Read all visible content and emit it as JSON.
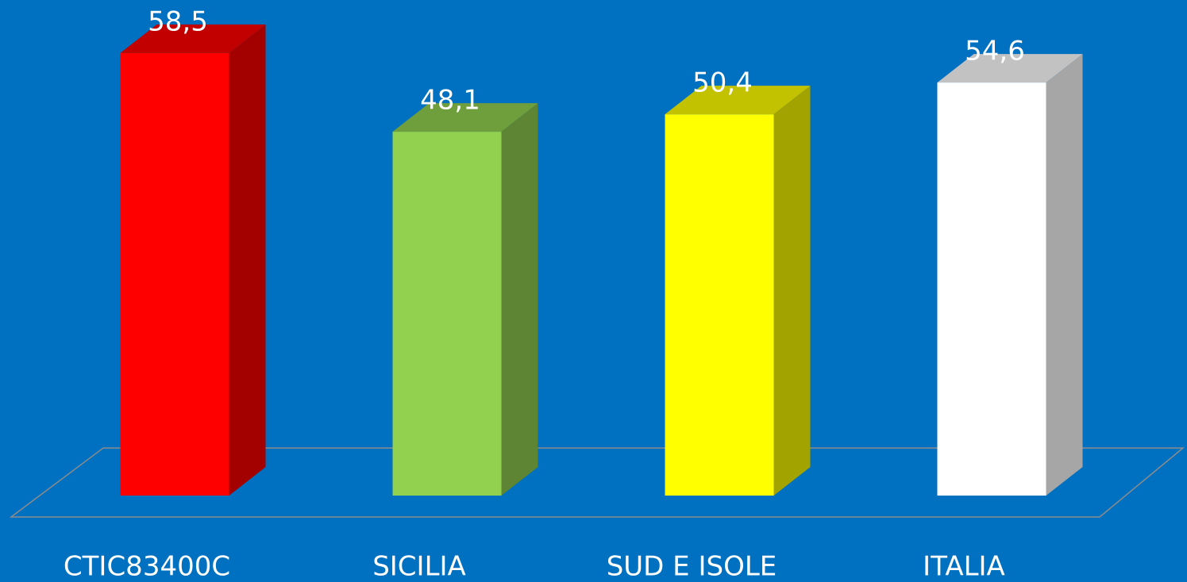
{
  "chart_data": {
    "type": "bar3d",
    "categories": [
      "CTIC83400C",
      "SICILIA",
      "SUD E ISOLE",
      "ITALIA"
    ],
    "values": [
      58.5,
      48.1,
      50.4,
      54.6
    ],
    "value_labels": [
      "58,5",
      "48,1",
      "50,4",
      "54,6"
    ],
    "colors": [
      "#ff0000",
      "#92d050",
      "#ffff00",
      "#ffffff"
    ]
  }
}
